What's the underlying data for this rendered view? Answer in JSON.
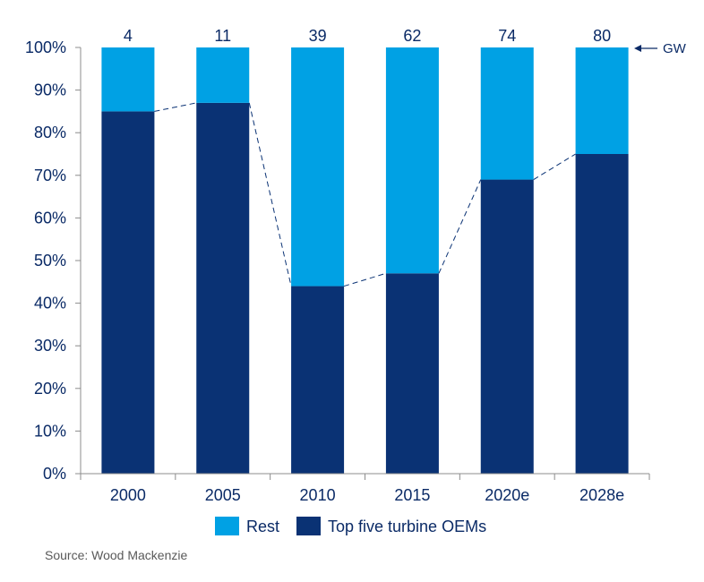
{
  "chart_data": {
    "type": "bar",
    "stacked": true,
    "categories": [
      "2000",
      "2005",
      "2010",
      "2015",
      "2020e",
      "2028e"
    ],
    "series": [
      {
        "name": "Top five turbine OEMs",
        "values": [
          85,
          87,
          44,
          47,
          69,
          75
        ],
        "color": "#0a3274"
      },
      {
        "name": "Rest",
        "values": [
          15,
          13,
          56,
          53,
          31,
          25
        ],
        "color": "#00a1e4"
      }
    ],
    "top_labels": [
      "4",
      "11",
      "39",
      "62",
      "74",
      "80"
    ],
    "top_label_unit": "GW",
    "ylim": [
      0,
      100
    ],
    "yticks": [
      "0%",
      "10%",
      "20%",
      "30%",
      "40%",
      "50%",
      "60%",
      "70%",
      "80%",
      "90%",
      "100%"
    ],
    "grid": false,
    "legend_position": "bottom",
    "legend": [
      "Rest",
      "Top five turbine OEMs"
    ],
    "connector": "dashed line linking tops of Top five turbine OEMs bars",
    "text_color": "#0a2a66"
  },
  "source": "Source: Wood Mackenzie"
}
